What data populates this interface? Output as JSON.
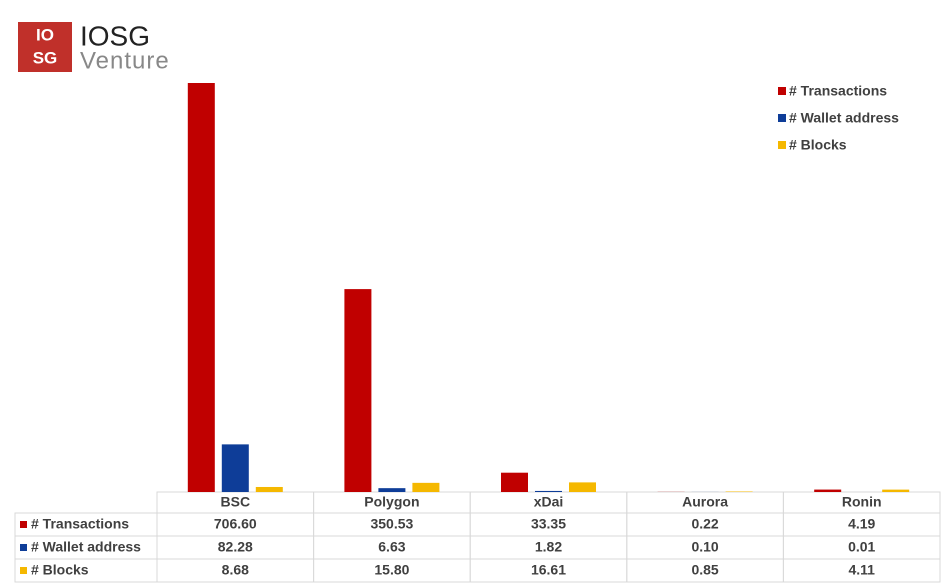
{
  "logo": {
    "icon_top": "IO",
    "icon_bottom": "SG",
    "title": "IOSG",
    "subtitle": "Venture"
  },
  "chart_data": {
    "type": "bar",
    "categories": [
      "BSC",
      "Polygon",
      "xDai",
      "Aurora",
      "Ronin"
    ],
    "series": [
      {
        "name": "# Transactions",
        "color": "#c00000",
        "values": [
          706.6,
          350.53,
          33.35,
          0.22,
          4.19
        ],
        "value_labels": [
          "706.60",
          "350.53",
          "33.35",
          "0.22",
          "4.19"
        ]
      },
      {
        "name": "# Wallet address",
        "color": "#0e3d98",
        "values": [
          82.28,
          6.63,
          1.82,
          0.1,
          0.01
        ],
        "value_labels": [
          "82.28",
          "6.63",
          "1.82",
          "0.10",
          "0.01"
        ]
      },
      {
        "name": "# Blocks",
        "color": "#f5b800",
        "values": [
          8.68,
          15.8,
          16.61,
          0.85,
          4.11
        ],
        "value_labels": [
          "8.68",
          "15.80",
          "16.61",
          "0.85",
          "4.11"
        ]
      }
    ],
    "legend": "upper right",
    "grid": false
  }
}
